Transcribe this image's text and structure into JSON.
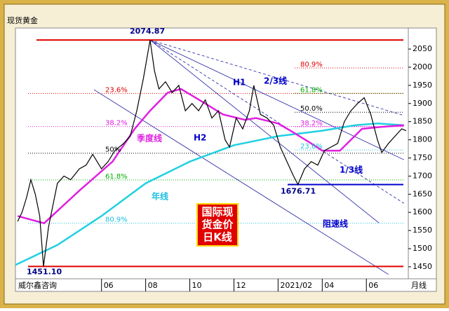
{
  "chart_data": {
    "type": "line",
    "title": "现货黄金",
    "source": "威尔鑫咨询",
    "period": "月线",
    "box_text": [
      "国际现",
      "货金价",
      "日K线"
    ],
    "xlim": [
      1.1,
      18.9
    ],
    "xticks": [
      {
        "value": 5,
        "label": "06"
      },
      {
        "value": 7,
        "label": "08"
      },
      {
        "value": 9,
        "label": "10"
      },
      {
        "value": 11,
        "label": "12"
      },
      {
        "value": 13,
        "label": "2021/02"
      },
      {
        "value": 15,
        "label": "04"
      },
      {
        "value": 17,
        "label": "06"
      }
    ],
    "ylim": [
      1417,
      2108
    ],
    "yticks": [
      1450,
      1500,
      1550,
      1600,
      1650,
      1700,
      1750,
      1800,
      1850,
      1900,
      1950,
      2000,
      2050
    ],
    "series": [
      {
        "color": "#000000",
        "x": [
          1.2,
          1.4,
          1.6,
          1.8,
          2.0,
          2.2,
          2.37,
          2.6,
          2.8,
          3.0,
          3.3,
          3.6,
          4.0,
          4.3,
          4.6,
          5.0,
          5.3,
          5.6,
          6.0,
          6.3,
          6.6,
          6.9,
          7.2,
          7.4,
          7.6,
          7.9,
          8.2,
          8.5,
          8.8,
          9.1,
          9.4,
          9.7,
          10.0,
          10.3,
          10.6,
          10.8,
          11.1,
          11.4,
          11.7,
          11.9,
          12.2,
          12.5,
          12.8,
          13.1,
          13.4,
          13.7,
          13.9,
          14.2,
          14.5,
          14.8,
          15.1,
          15.4,
          15.7,
          16.0,
          16.3,
          16.6,
          16.9,
          17.2,
          17.5,
          17.7,
          18.0,
          18.3,
          18.6,
          18.8
        ],
        "values": [
          1575,
          1600,
          1640,
          1690,
          1650,
          1590,
          1451.1,
          1560,
          1620,
          1680,
          1700,
          1690,
          1720,
          1730,
          1760,
          1720,
          1740,
          1770,
          1790,
          1810,
          1880,
          1970,
          2074.87,
          1990,
          1940,
          1960,
          1930,
          1950,
          1880,
          1900,
          1880,
          1910,
          1860,
          1880,
          1800,
          1780,
          1860,
          1830,
          1880,
          1950,
          1870,
          1860,
          1840,
          1780,
          1740,
          1700,
          1676.71,
          1720,
          1740,
          1730,
          1770,
          1780,
          1790,
          1850,
          1880,
          1900,
          1916,
          1870,
          1800,
          1765,
          1790,
          1810,
          1830,
          1825
        ]
      },
      {
        "color": "#e020e0",
        "x": [
          1.2,
          2.4,
          4.0,
          5.5,
          6.5,
          7.2,
          8.0,
          8.6,
          9.7,
          10.5,
          11.5,
          12.0,
          13.0,
          13.7,
          14.5,
          15.0,
          15.8,
          16.8,
          17.6,
          18.7
        ],
        "values": [
          1590,
          1570,
          1660,
          1740,
          1830,
          1880,
          1930,
          1940,
          1900,
          1870,
          1855,
          1860,
          1845,
          1820,
          1790,
          1770,
          1770,
          1830,
          1835,
          1840
        ]
      },
      {
        "color": "#20d0e0",
        "x": [
          1.1,
          3.0,
          5.0,
          7.0,
          9.0,
          11.0,
          13.0,
          15.0,
          16.5,
          17.5,
          18.7
        ],
        "values": [
          1455,
          1510,
          1590,
          1680,
          1740,
          1785,
          1810,
          1825,
          1840,
          1845,
          1840
        ]
      }
    ],
    "levels": [
      {
        "value": 2074.87,
        "label": "2074.87",
        "color": "#e00000"
      },
      {
        "value": 1451.1,
        "label": "1451.10",
        "color": "#e00000"
      },
      {
        "value": 1676.71,
        "label": "1676.71",
        "color": "#0000cc"
      }
    ],
    "fib_left": [
      {
        "value": 1927.7,
        "label": "23.6%",
        "color": "#e00000"
      },
      {
        "value": 1836.6,
        "label": "38.2%",
        "color": "#e020e0"
      },
      {
        "value": 1763,
        "label": "50%",
        "color": "#000000"
      },
      {
        "value": 1689.4,
        "label": "61.8%",
        "color": "#00b000"
      },
      {
        "value": 1570.3,
        "label": "80.9%",
        "color": "#20c0e0"
      }
    ],
    "fib_right": [
      {
        "value": 1998,
        "label": "80.9%",
        "color": "#e00000"
      },
      {
        "value": 1928,
        "label": "61.8%",
        "color": "#00b000"
      },
      {
        "value": 1876,
        "label": "50.0%",
        "color": "#000000"
      },
      {
        "value": 1836,
        "label": "38.2%",
        "color": "#e020e0"
      },
      {
        "value": 1772,
        "label": "23.6%",
        "color": "#20c0e0"
      }
    ],
    "trendlines": [
      {
        "x": [
          7.2,
          18.7
        ],
        "y": [
          2074.87,
          1867
        ],
        "style": "dashed"
      },
      {
        "x": [
          7.2,
          18.7
        ],
        "y": [
          2074.87,
          1745
        ],
        "style": "solid"
      },
      {
        "x": [
          7.2,
          18.7
        ],
        "y": [
          2074.87,
          1625
        ],
        "style": "dashed"
      },
      {
        "x": [
          4.66,
          18.0
        ],
        "y": [
          1938,
          1429
        ],
        "style": "solid"
      },
      {
        "x": [
          7.2,
          17.57
        ],
        "y": [
          2074.87,
          1571
        ],
        "style": "solid"
      }
    ],
    "annotations": [
      {
        "text": "H1",
        "color": "#0000cc"
      },
      {
        "text": "2/3线",
        "color": "#0000cc"
      },
      {
        "text": "H2",
        "color": "#0000cc"
      },
      {
        "text": "季度线",
        "color": "#e020e0"
      },
      {
        "text": "年线",
        "color": "#20c0e0"
      },
      {
        "text": "1/3线",
        "color": "#0000cc"
      },
      {
        "text": "阻速线",
        "color": "#0000cc"
      }
    ]
  }
}
